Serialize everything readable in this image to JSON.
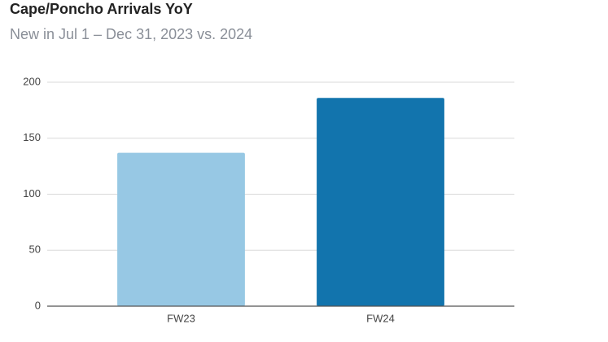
{
  "chart_data": {
    "type": "bar",
    "title": "Cape/Poncho Arrivals YoY",
    "subtitle": "New in Jul 1 – Dec 31, 2023 vs. 2024",
    "categories": [
      "FW23",
      "FW24"
    ],
    "values": [
      137,
      186
    ],
    "colors": [
      "#97c8e4",
      "#1274ad"
    ],
    "ylim": [
      0,
      200
    ],
    "yticks": [
      0,
      50,
      100,
      150,
      200
    ],
    "grid": true
  }
}
